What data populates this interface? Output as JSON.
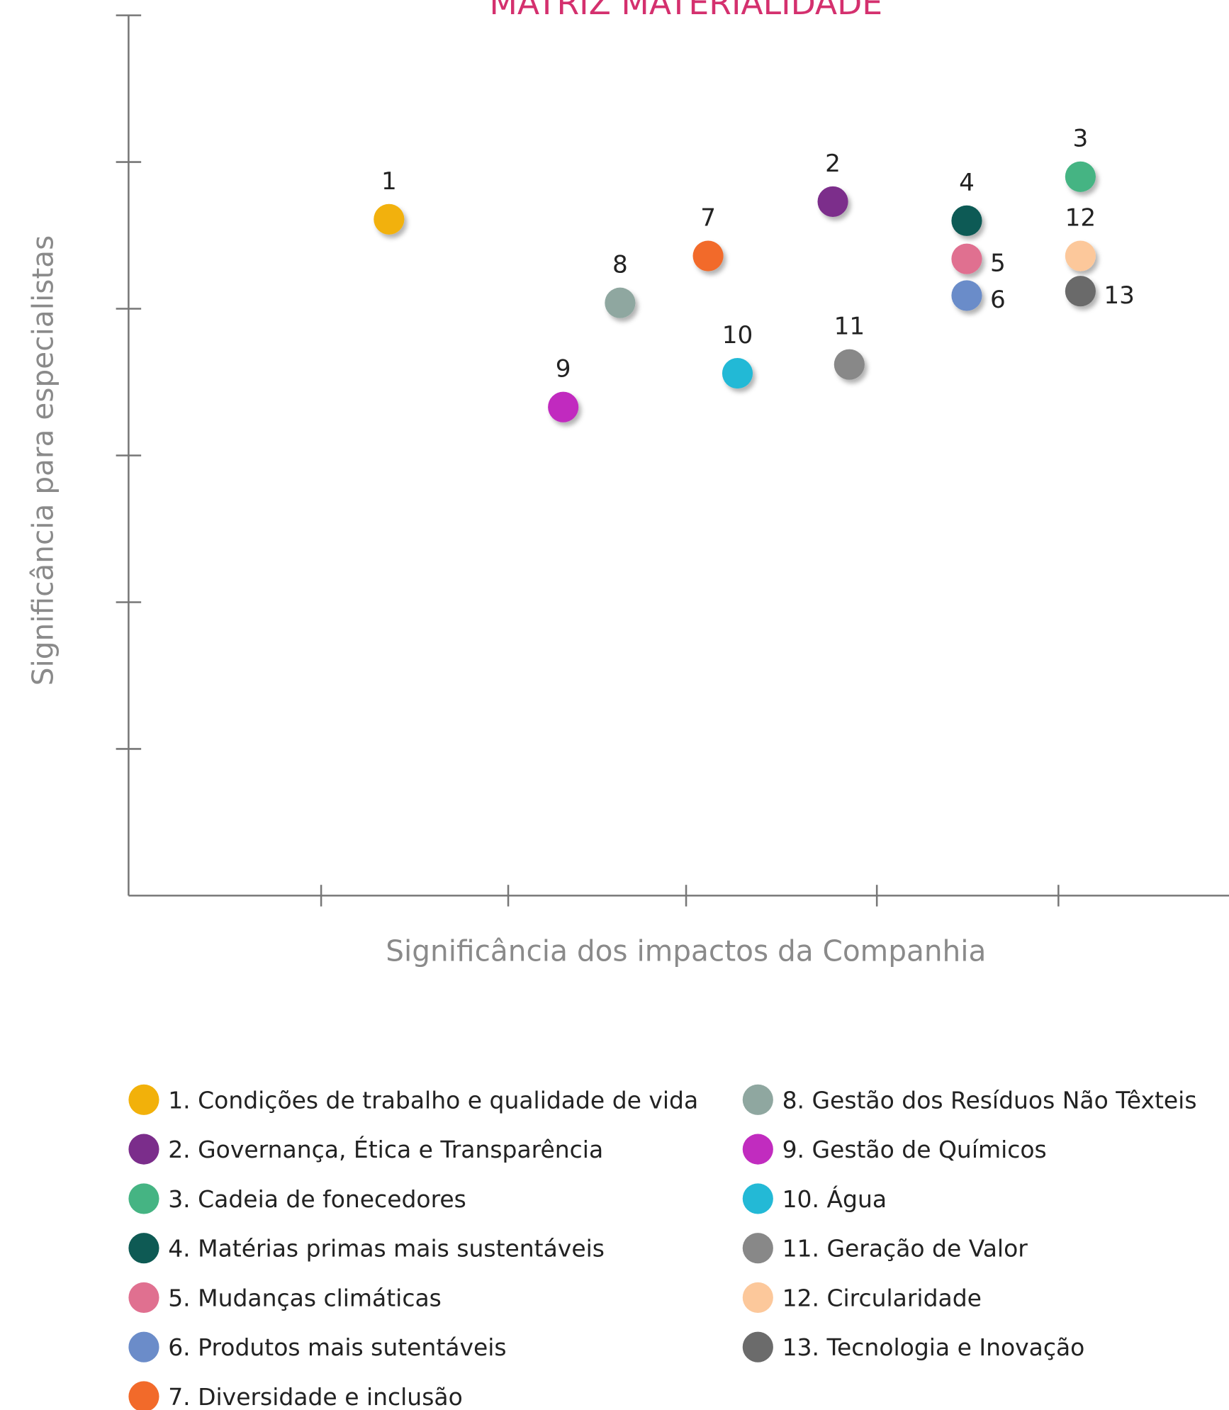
{
  "chart_data": {
    "type": "scatter",
    "title": "MATRIZ MATERIALIDADE",
    "xlabel": "Significância dos impactos da Companhia",
    "ylabel": "Significância para especialistas",
    "xlim": [
      0,
      6
    ],
    "ylim": [
      0,
      6
    ],
    "xticks": [
      1.05,
      2.07,
      3.04,
      4.08,
      5.07
    ],
    "yticks": [
      1,
      2,
      3,
      4,
      5,
      6
    ],
    "grid": false,
    "points": [
      {
        "label": "1",
        "name": "1. Condições de trabalho e qualidade de vida",
        "color": "#f2b10a",
        "x": 1.42,
        "y": 4.61,
        "label_position": "top"
      },
      {
        "label": "2",
        "name": "2. Governança, Ética e Transparência",
        "color": "#7b2d8b",
        "x": 3.84,
        "y": 4.73,
        "label_position": "top"
      },
      {
        "label": "3",
        "name": "3. Cadeia de fonecedores",
        "color": "#45b483",
        "x": 5.19,
        "y": 4.9,
        "label_position": "top"
      },
      {
        "label": "4",
        "name": "4. Matérias primas mais sustentáveis",
        "color": "#0e5a54",
        "x": 4.57,
        "y": 4.6,
        "label_position": "top"
      },
      {
        "label": "5",
        "name": "5. Mudanças climáticas",
        "color": "#e07090",
        "x": 4.57,
        "y": 4.34,
        "label_position": "right"
      },
      {
        "label": "6",
        "name": "6. Produtos mais sutentáveis",
        "color": "#6b8cc9",
        "x": 4.57,
        "y": 4.09,
        "label_position": "right"
      },
      {
        "label": "7",
        "name": "7. Diversidade e inclusão",
        "color": "#f26a2a",
        "x": 3.16,
        "y": 4.36,
        "label_position": "top"
      },
      {
        "label": "8",
        "name": "8. Gestão dos Resíduos Não Têxteis",
        "color": "#8fa7a0",
        "x": 2.68,
        "y": 4.04,
        "label_position": "top"
      },
      {
        "label": "9",
        "name": "9. Gestão de Químicos",
        "color": "#c12cbf",
        "x": 2.37,
        "y": 3.33,
        "label_position": "top"
      },
      {
        "label": "10",
        "name": "10. Água",
        "color": "#23b9d6",
        "x": 3.32,
        "y": 3.56,
        "label_position": "top"
      },
      {
        "label": "11",
        "name": "11. Geração de Valor",
        "color": "#888888",
        "x": 3.93,
        "y": 3.62,
        "label_position": "top"
      },
      {
        "label": "12",
        "name": "12. Circularidade",
        "color": "#fcc89b",
        "x": 5.19,
        "y": 4.36,
        "label_position": "top"
      },
      {
        "label": "13",
        "name": "13. Tecnologia e Inovação",
        "color": "#6b6b6b",
        "x": 5.19,
        "y": 4.12,
        "label_position": "right"
      }
    ]
  }
}
